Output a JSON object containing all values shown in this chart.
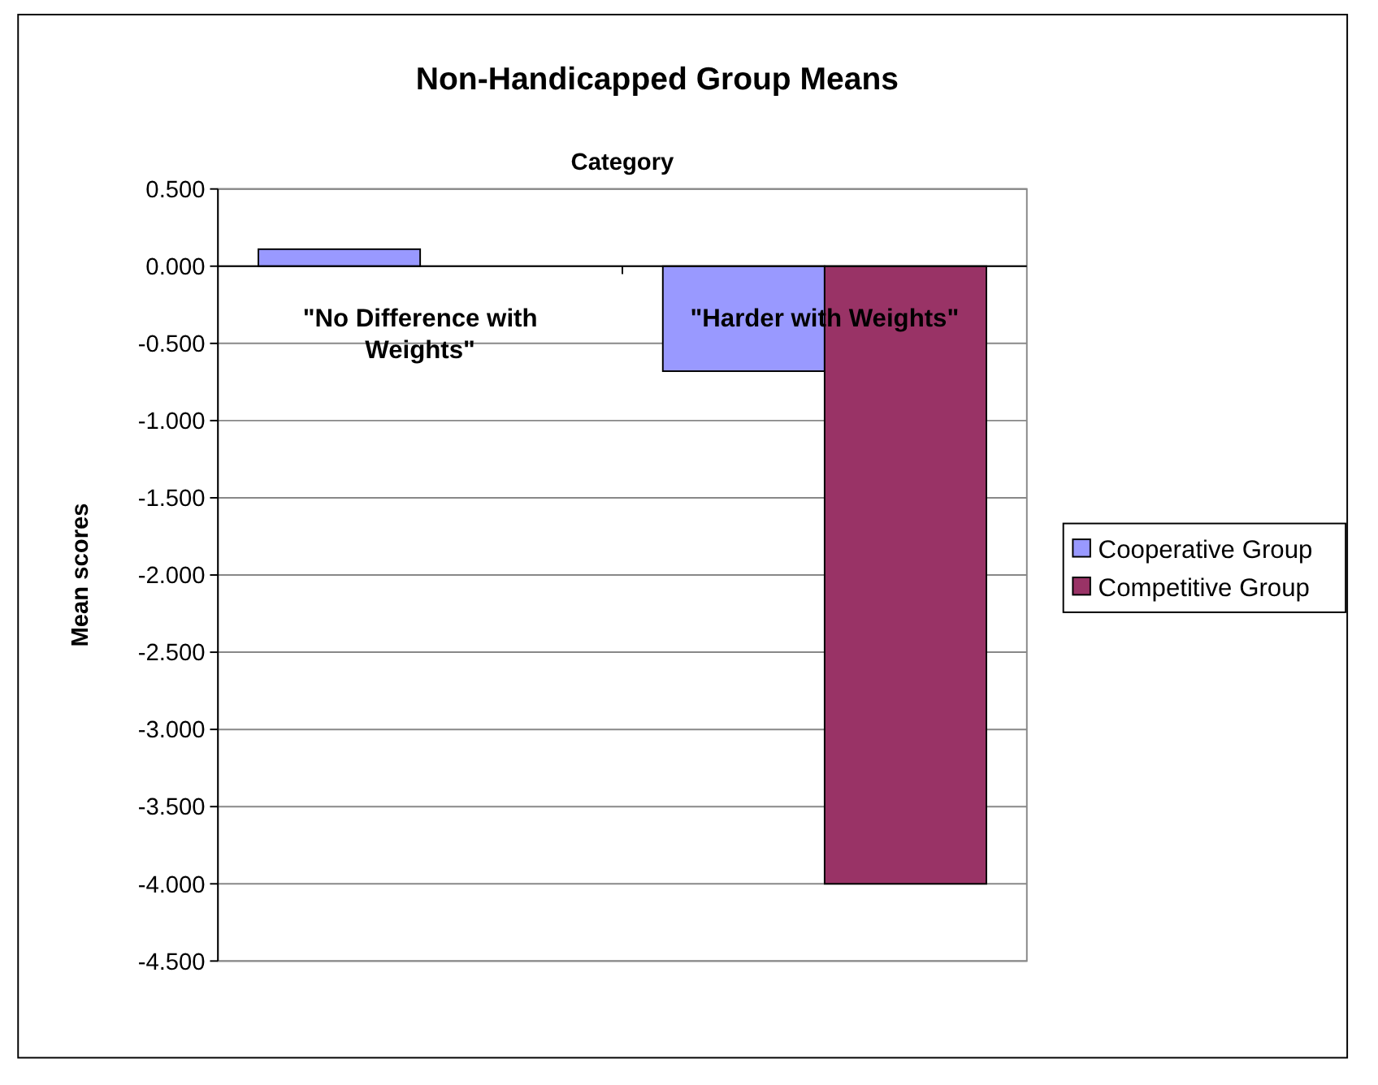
{
  "chart_data": {
    "type": "bar",
    "title": "Non-Handicapped Group Means",
    "xlabel": "Category",
    "ylabel": "Mean scores",
    "categories": [
      "\"No Difference with Weights\"",
      "\"Harder with Weights\""
    ],
    "series": [
      {
        "name": "Cooperative Group",
        "color": "#9999ff",
        "values": [
          0.11,
          -0.68
        ]
      },
      {
        "name": "Competitive Group",
        "color": "#993366",
        "values": [
          0,
          -4.0
        ]
      }
    ],
    "ylim": [
      -4.5,
      0.5
    ],
    "yticks": [
      {
        "value": 0.5,
        "label": "0.500"
      },
      {
        "value": 0,
        "label": "0.000"
      },
      {
        "value": -0.5,
        "label": "-0.500"
      },
      {
        "value": -1,
        "label": "-1.000"
      },
      {
        "value": -1.5,
        "label": "-1.500"
      },
      {
        "value": -2,
        "label": "-2.000"
      },
      {
        "value": -2.5,
        "label": "-2.500"
      },
      {
        "value": -3,
        "label": "-3.000"
      },
      {
        "value": -3.5,
        "label": "-3.500"
      },
      {
        "value": -4,
        "label": "-4.000"
      },
      {
        "value": -4.5,
        "label": "-4.500"
      }
    ],
    "grid": "y",
    "legend": "right"
  }
}
